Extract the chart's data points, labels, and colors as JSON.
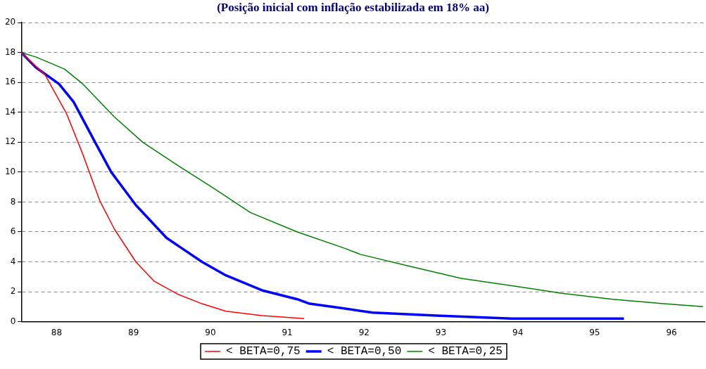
{
  "chart_data": {
    "type": "line",
    "title": "(Posição inicial com inflação estabilizada em 18% aa)",
    "xlim": [
      87.54,
      96.43
    ],
    "xticks": [
      88,
      89,
      90,
      91,
      92,
      93,
      94,
      95,
      96
    ],
    "ylim": [
      0,
      20
    ],
    "yticks": [
      0,
      2,
      4,
      6,
      8,
      10,
      12,
      14,
      16,
      18,
      20
    ],
    "grid": "y",
    "legend": "bottom",
    "marker": "none",
    "line_style": "solid",
    "series": [
      {
        "name": "< BETA=0,75",
        "color": "#ff0000",
        "x": [
          87.54,
          87.85,
          88.13,
          88.34,
          88.56,
          88.75,
          89.03,
          89.27,
          89.59,
          89.89,
          90.2,
          90.67,
          91.22
        ],
        "values": [
          18,
          16.5,
          13.9,
          11.2,
          8.1,
          6.2,
          4.0,
          2.7,
          1.8,
          1.2,
          0.7,
          0.4,
          0.2
        ]
      },
      {
        "name": "< BETA=0,50",
        "color": "#0000ff",
        "x": [
          87.54,
          87.73,
          88.03,
          88.22,
          88.5,
          88.71,
          89.03,
          89.43,
          89.89,
          90.2,
          90.67,
          91.13,
          91.29,
          91.72,
          92.11,
          92.94,
          93.92,
          95.38
        ],
        "values": [
          18,
          17.0,
          15.9,
          14.7,
          12.0,
          10.0,
          7.8,
          5.6,
          4.0,
          3.1,
          2.1,
          1.5,
          1.2,
          0.9,
          0.6,
          0.4,
          0.2,
          0.2
        ]
      },
      {
        "name": "< BETA=0,25",
        "color": "#008000",
        "x": [
          87.54,
          87.73,
          88.1,
          88.34,
          88.75,
          89.12,
          89.59,
          90.05,
          90.52,
          91.13,
          91.75,
          91.95,
          92.6,
          93.26,
          93.92,
          94.57,
          95.23,
          95.89,
          96.41
        ],
        "values": [
          18,
          17.7,
          16.9,
          15.9,
          13.7,
          12.0,
          10.4,
          8.9,
          7.3,
          6.0,
          4.9,
          4.5,
          3.7,
          2.9,
          2.4,
          1.9,
          1.5,
          1.2,
          1.0
        ]
      }
    ]
  }
}
